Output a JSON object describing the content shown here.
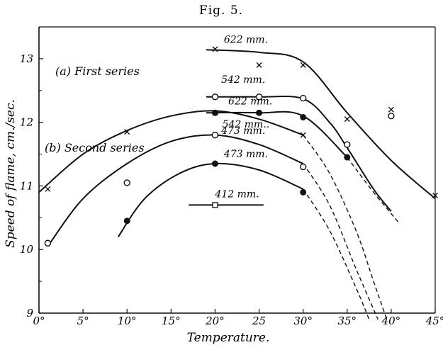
{
  "figure": {
    "title": "Fig. 5.",
    "group_a": "(a) First series",
    "group_b": "(b) Second series"
  },
  "chart_data": {
    "type": "line",
    "xlabel": "Temperature.",
    "ylabel": "Speed of flame, cm./sec.",
    "xlim": [
      0,
      45
    ],
    "ylim": [
      9,
      13.5
    ],
    "xticks": [
      "0°",
      "5°",
      "10°",
      "15°",
      "20°",
      "25",
      "30°",
      "35°",
      "40°",
      "45°"
    ],
    "yticks": [
      "9",
      "10",
      "11",
      "12",
      "13"
    ],
    "grid": false,
    "series": [
      {
        "name": "622 mm.",
        "group": "First series",
        "marker": "x",
        "points": [
          [
            20,
            13.15
          ],
          [
            25,
            12.9
          ],
          [
            30,
            12.9
          ],
          [
            35,
            12.05
          ],
          [
            40,
            12.2
          ],
          [
            45,
            10.85
          ]
        ],
        "solid_curve": [
          [
            19,
            13.14
          ],
          [
            25,
            13.1
          ],
          [
            30,
            12.95
          ],
          [
            35,
            12.15
          ],
          [
            40,
            11.4
          ],
          [
            45,
            10.8
          ]
        ]
      },
      {
        "name": "542 mm.",
        "group": "First series",
        "marker": "open-circle",
        "points": [
          [
            20,
            12.4
          ],
          [
            25,
            12.4
          ],
          [
            30,
            12.38
          ],
          [
            35,
            11.65
          ],
          [
            40,
            12.1
          ]
        ],
        "solid_curve": [
          [
            19,
            12.4
          ],
          [
            25,
            12.4
          ],
          [
            30,
            12.37
          ],
          [
            33,
            12.0
          ],
          [
            35,
            11.6
          ],
          [
            38,
            10.95
          ],
          [
            40,
            10.6
          ]
        ]
      },
      {
        "name": "473 mm.",
        "group": "First series",
        "marker": "filled-circle",
        "points": [
          [
            20,
            12.15
          ],
          [
            25,
            12.15
          ],
          [
            30,
            12.08
          ],
          [
            35,
            11.45
          ]
        ],
        "solid_curve": [
          [
            19,
            12.15
          ],
          [
            25,
            12.15
          ],
          [
            30,
            12.1
          ],
          [
            35,
            11.45
          ]
        ],
        "dashed_curve": [
          [
            35,
            11.45
          ],
          [
            38,
            10.9
          ],
          [
            41,
            10.4
          ]
        ]
      },
      {
        "name": "622 mm.",
        "group": "Second series",
        "marker": "x",
        "points": [
          [
            1,
            10.95
          ],
          [
            10,
            11.85
          ],
          [
            20,
            12.15
          ],
          [
            30,
            11.8
          ]
        ],
        "solid_curve": [
          [
            0,
            10.9
          ],
          [
            5,
            11.5
          ],
          [
            10,
            11.87
          ],
          [
            15,
            12.1
          ],
          [
            20,
            12.18
          ],
          [
            25,
            12.05
          ],
          [
            30,
            11.8
          ]
        ],
        "dashed_curve": [
          [
            30,
            11.8
          ],
          [
            33,
            11.2
          ],
          [
            36,
            10.3
          ],
          [
            38,
            9.5
          ],
          [
            39.5,
            8.9
          ]
        ]
      },
      {
        "name": "542 mm..",
        "group": "Second series",
        "marker": "open-circle",
        "points": [
          [
            1,
            10.1
          ],
          [
            10,
            11.05
          ],
          [
            20,
            11.8
          ],
          [
            30,
            11.3
          ]
        ],
        "solid_curve": [
          [
            1,
            10.05
          ],
          [
            5,
            10.8
          ],
          [
            10,
            11.35
          ],
          [
            15,
            11.7
          ],
          [
            20,
            11.8
          ],
          [
            25,
            11.65
          ],
          [
            30,
            11.35
          ]
        ],
        "dashed_curve": [
          [
            30,
            11.35
          ],
          [
            33,
            10.7
          ],
          [
            36,
            9.7
          ],
          [
            38.5,
            8.9
          ]
        ]
      },
      {
        "name": "473 mm.",
        "group": "Second series",
        "marker": "filled-circle",
        "points": [
          [
            10,
            10.45
          ],
          [
            20,
            11.35
          ],
          [
            30,
            10.9
          ]
        ],
        "solid_curve": [
          [
            9,
            10.2
          ],
          [
            12,
            10.8
          ],
          [
            16,
            11.2
          ],
          [
            20,
            11.35
          ],
          [
            25,
            11.25
          ],
          [
            30,
            10.95
          ]
        ],
        "dashed_curve": [
          [
            30,
            10.95
          ],
          [
            33,
            10.3
          ],
          [
            36,
            9.4
          ],
          [
            37.5,
            8.9
          ]
        ]
      },
      {
        "name": "412 mm.",
        "group": "Second series",
        "marker": "open-square",
        "points": [
          [
            20,
            10.7
          ]
        ],
        "solid_curve": [
          [
            17,
            10.7
          ],
          [
            20,
            10.7
          ],
          [
            25.5,
            10.7
          ]
        ]
      }
    ]
  }
}
